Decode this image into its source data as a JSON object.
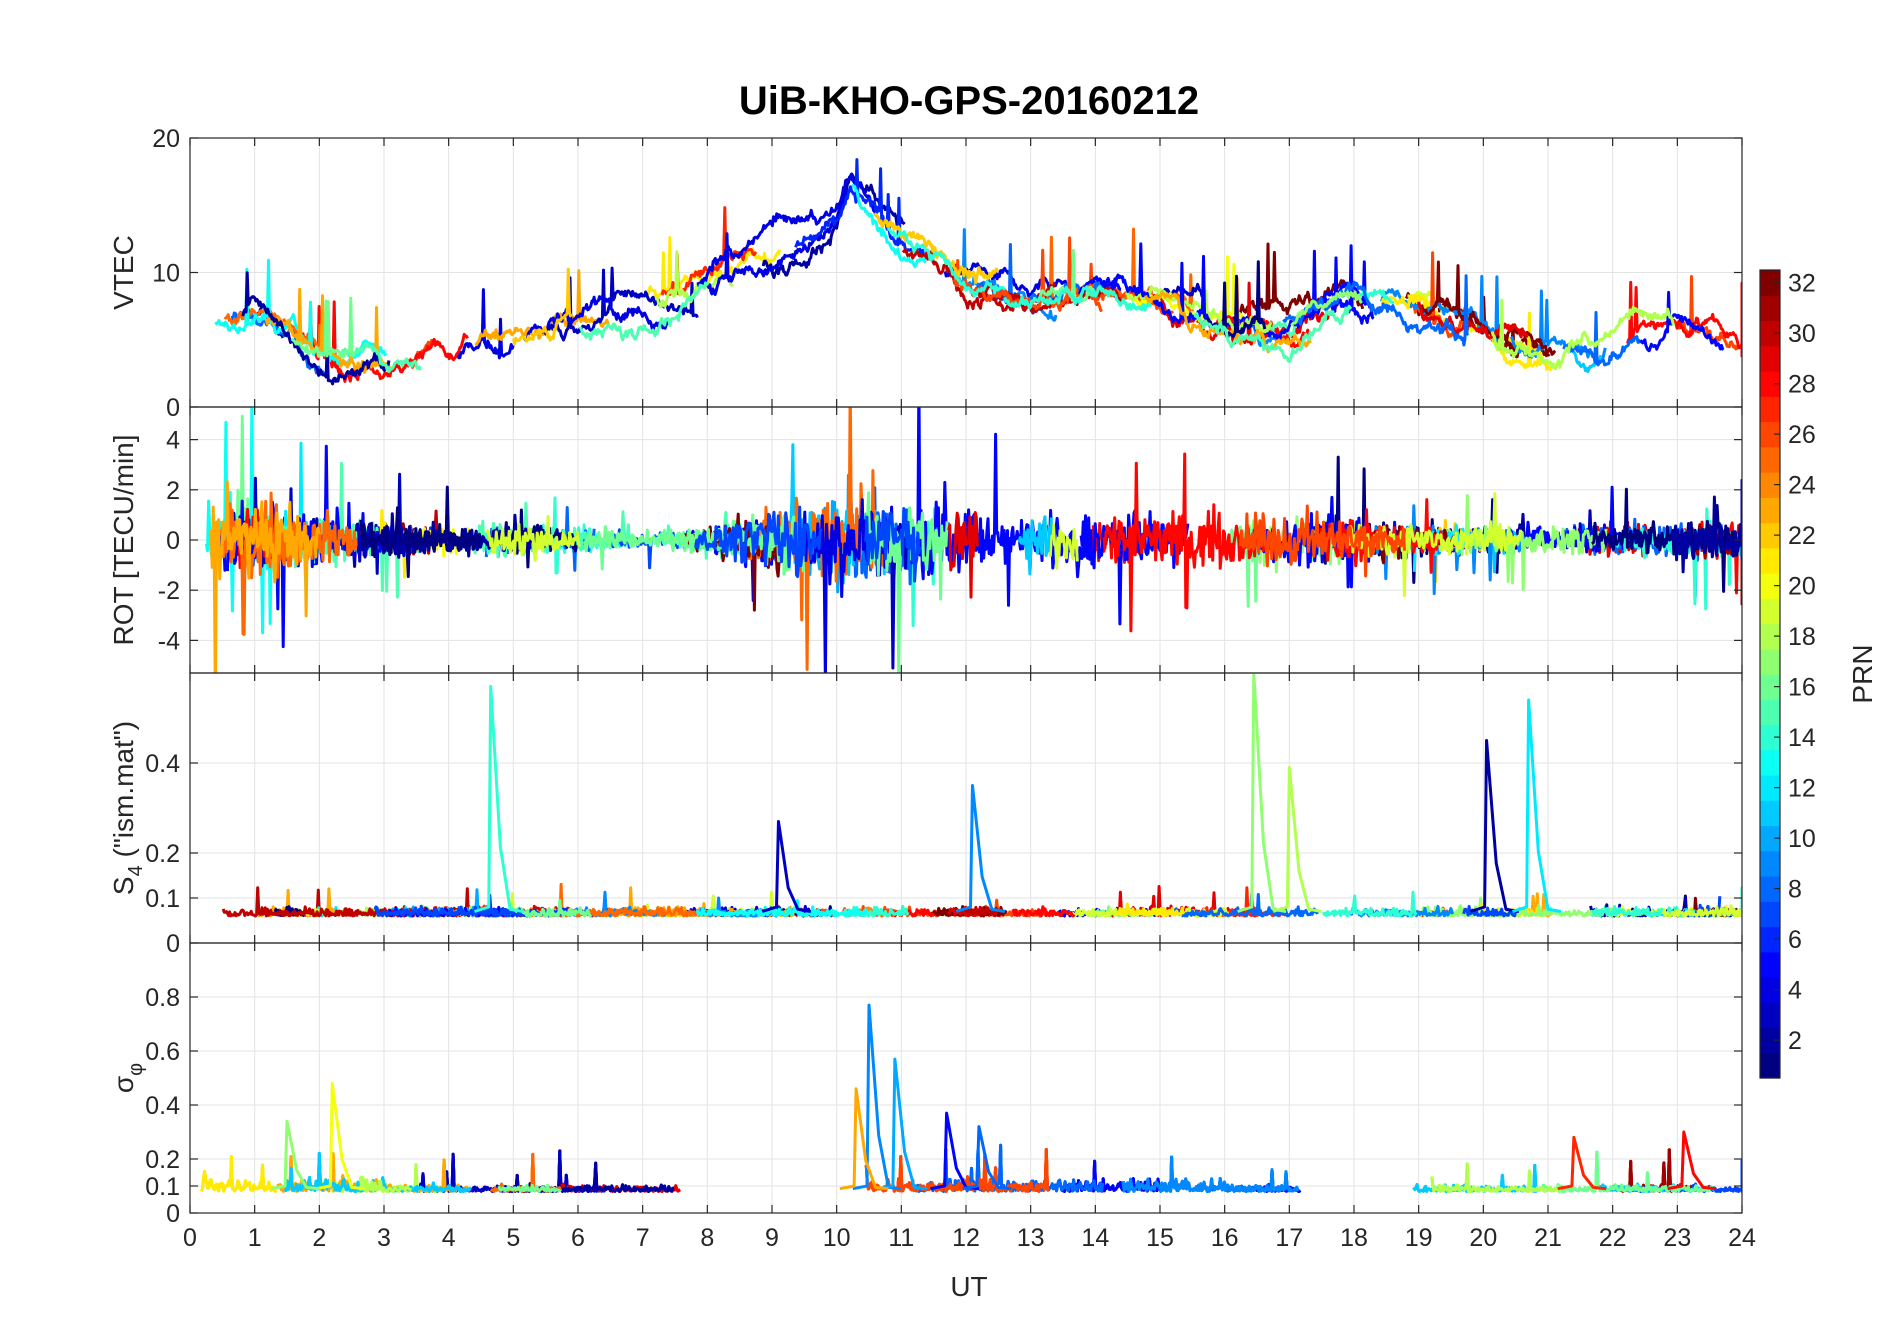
{
  "chart_data": {
    "type": "line",
    "title": "UiB-KHO-GPS-20160212",
    "xlabel": "UT",
    "xlim": [
      0,
      24
    ],
    "x_ticks": [
      "0",
      "1",
      "2",
      "3",
      "4",
      "5",
      "6",
      "7",
      "8",
      "9",
      "10",
      "11",
      "12",
      "13",
      "14",
      "15",
      "16",
      "17",
      "18",
      "19",
      "20",
      "21",
      "22",
      "23",
      "24"
    ],
    "colorbar": {
      "label": "PRN",
      "range": [
        1,
        32
      ],
      "ticks": [
        "2",
        "4",
        "6",
        "8",
        "10",
        "12",
        "14",
        "16",
        "18",
        "20",
        "22",
        "24",
        "26",
        "28",
        "30",
        "32"
      ],
      "colormap": "jet"
    },
    "panels": [
      {
        "id": "vtec",
        "ylabel": "VTEC",
        "ylim": [
          0,
          20
        ],
        "y_ticks": [
          "0",
          "10",
          "20"
        ],
        "y_tick_values": [
          0,
          10,
          20
        ],
        "baseline": 5,
        "description_peak": [
          10.2,
          17.5
        ],
        "series_envelope": [
          [
            0,
            6
          ],
          [
            1,
            7
          ],
          [
            2,
            4
          ],
          [
            3,
            3.5
          ],
          [
            4,
            4
          ],
          [
            5,
            5
          ],
          [
            6,
            6.5
          ],
          [
            7,
            8
          ],
          [
            8,
            9
          ],
          [
            9,
            11
          ],
          [
            10,
            14
          ],
          [
            10.2,
            17
          ],
          [
            11,
            12
          ],
          [
            12,
            9
          ],
          [
            13,
            8
          ],
          [
            14,
            9
          ],
          [
            15,
            8
          ],
          [
            16,
            6
          ],
          [
            17,
            6
          ],
          [
            18,
            8
          ],
          [
            19,
            8
          ],
          [
            20,
            6
          ],
          [
            21,
            4
          ],
          [
            22,
            4
          ],
          [
            23,
            6
          ],
          [
            24,
            5
          ]
        ]
      },
      {
        "id": "rot",
        "ylabel": "ROT [TECU/min]",
        "ylim": [
          -5.3,
          5.3
        ],
        "y_ticks": [
          "-4",
          "-2",
          "0",
          "2",
          "4"
        ],
        "y_tick_values": [
          -4,
          -2,
          0,
          2,
          4
        ],
        "baseline": 0,
        "activity": [
          [
            0,
            1.5
          ],
          [
            1,
            1.3
          ],
          [
            2,
            1.0
          ],
          [
            3,
            0.6
          ],
          [
            4,
            0.5
          ],
          [
            5,
            0.6
          ],
          [
            6,
            0.4
          ],
          [
            7,
            0.3
          ],
          [
            8,
            0.4
          ],
          [
            9,
            1.2
          ],
          [
            10,
            1.6
          ],
          [
            11,
            1.5
          ],
          [
            12,
            1.2
          ],
          [
            13,
            1.0
          ],
          [
            14,
            1.0
          ],
          [
            15,
            1.0
          ],
          [
            16,
            0.9
          ],
          [
            17,
            0.9
          ],
          [
            18,
            0.8
          ],
          [
            19,
            0.5
          ],
          [
            20,
            0.5
          ],
          [
            21,
            0.5
          ],
          [
            22,
            0.5
          ],
          [
            23,
            0.6
          ],
          [
            24,
            0.7
          ]
        ]
      },
      {
        "id": "s4",
        "ylabel": "S4 (\"ism.mat\")",
        "ylabel_main": "S",
        "ylabel_sub": "4",
        "ylabel_rest": " (\"ism.mat\")",
        "ylim": [
          0,
          0.6
        ],
        "y_ticks": [
          "0",
          "0.1",
          "0.2",
          "0.4"
        ],
        "y_tick_values": [
          0,
          0.1,
          0.2,
          0.4
        ],
        "baseline": 0.06,
        "spikes": [
          {
            "x": 4.65,
            "y": 0.57,
            "prn": 14
          },
          {
            "x": 9.1,
            "y": 0.27,
            "prn": 3
          },
          {
            "x": 12.1,
            "y": 0.35,
            "prn": 9
          },
          {
            "x": 16.45,
            "y": 0.6,
            "prn": 17
          },
          {
            "x": 17.0,
            "y": 0.39,
            "prn": 18
          },
          {
            "x": 20.05,
            "y": 0.45,
            "prn": 2
          },
          {
            "x": 20.7,
            "y": 0.54,
            "prn": 12
          }
        ]
      },
      {
        "id": "sigma_phi",
        "ylabel": "σφ",
        "ylabel_main": "σ",
        "ylabel_sub": "φ",
        "ylim": [
          0,
          1
        ],
        "y_ticks": [
          "0",
          "0.1",
          "0.2",
          "0.4",
          "0.6",
          "0.8"
        ],
        "y_tick_values": [
          0,
          0.1,
          0.2,
          0.4,
          0.6,
          0.8
        ],
        "baseline": 0.08,
        "spikes": [
          {
            "x": 2.2,
            "y": 0.48,
            "prn": 20
          },
          {
            "x": 1.5,
            "y": 0.34,
            "prn": 17
          },
          {
            "x": 10.5,
            "y": 0.77,
            "prn": 9
          },
          {
            "x": 10.9,
            "y": 0.57,
            "prn": 10
          },
          {
            "x": 10.3,
            "y": 0.46,
            "prn": 23
          },
          {
            "x": 11.7,
            "y": 0.37,
            "prn": 5
          },
          {
            "x": 12.2,
            "y": 0.32,
            "prn": 8
          },
          {
            "x": 23.1,
            "y": 0.3,
            "prn": 28
          },
          {
            "x": 21.4,
            "y": 0.28,
            "prn": 27
          }
        ]
      }
    ]
  }
}
